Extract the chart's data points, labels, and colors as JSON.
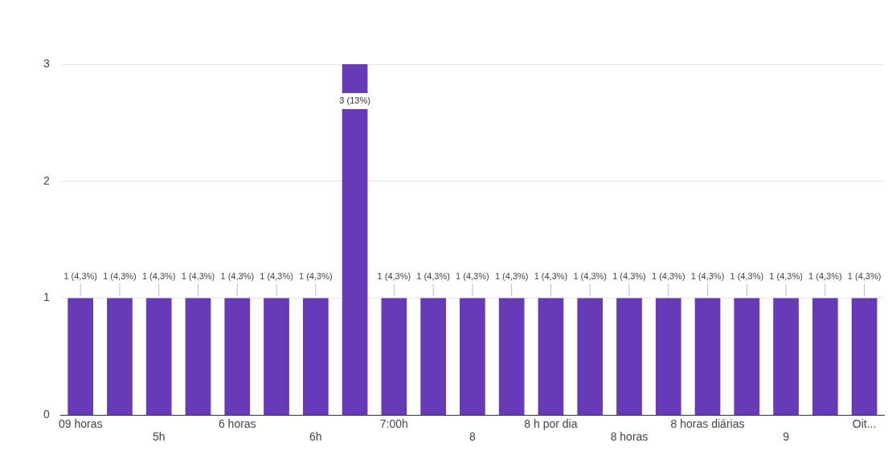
{
  "chart_data": {
    "type": "bar",
    "categories": [
      "09 horas",
      null,
      "5h",
      null,
      "6 horas",
      null,
      "6h",
      null,
      "7:00h",
      null,
      "8",
      null,
      "8 h por dia",
      null,
      "8 horas",
      null,
      "8 horas diárias",
      null,
      "9",
      null,
      "Oit..."
    ],
    "values": [
      1,
      1,
      1,
      1,
      1,
      1,
      1,
      3,
      1,
      1,
      1,
      1,
      1,
      1,
      1,
      1,
      1,
      1,
      1,
      1,
      1
    ],
    "value_labels": [
      "1 (4,3%)",
      "1 (4,3%)",
      "1 (4,3%)",
      "1 (4,3%)",
      "1 (4,3%)",
      "1 (4,3%)",
      "1 (4,3%)",
      "3 (13%)",
      "1 (4,3%)",
      "1 (4,3%)",
      "1 (4,3%)",
      "1 (4,3%)",
      "1 (4,3%)",
      "1 (4,3%)",
      "1 (4,3%)",
      "1 (4,3%)",
      "1 (4,3%)",
      "1 (4,3%)",
      "1 (4,3%)",
      "1 (4,3%)",
      "1 (4,3%)"
    ],
    "color": "#673ab7",
    "ylim": [
      0,
      3
    ],
    "yticks": [
      0,
      1,
      2,
      3
    ],
    "grid": "y"
  }
}
